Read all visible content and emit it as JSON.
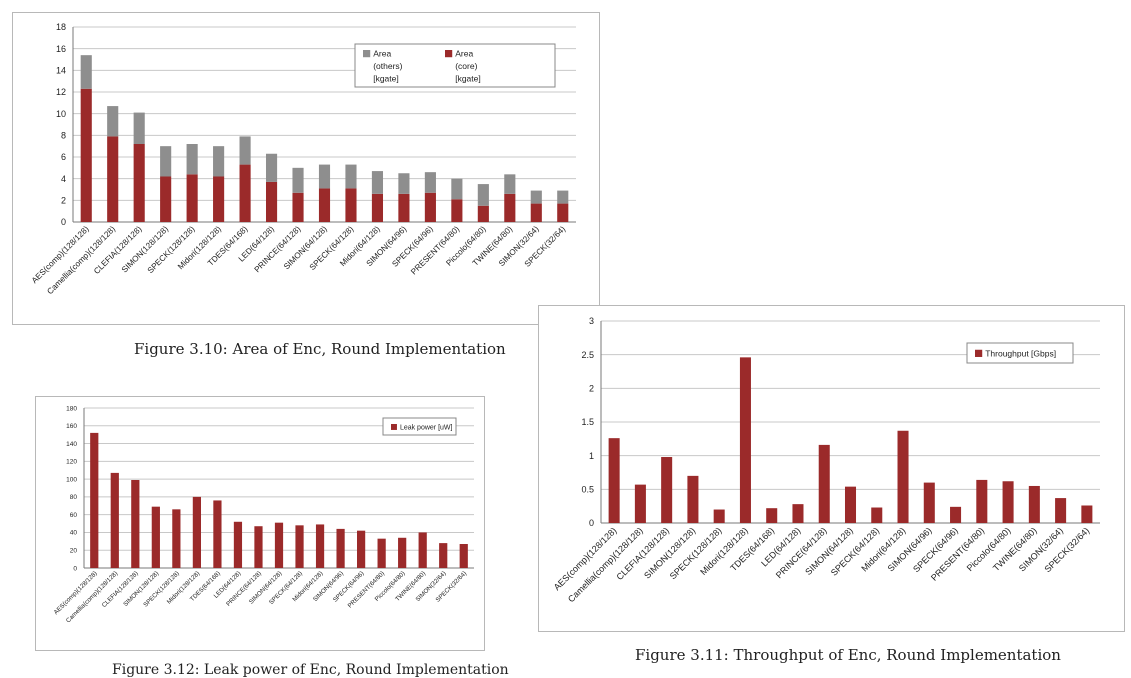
{
  "colors": {
    "core": "#9b2a2a",
    "others": "#8e8e8e",
    "grid": "#c8c8c8",
    "axis": "#7a7a7a"
  },
  "captions": {
    "area": "Figure 3.10: Area of Enc, Round Implementation",
    "throughput": "Figure 3.11: Throughput of Enc, Round Implementation",
    "leak": "Figure 3.12: Leak power of Enc, Round Implementation"
  },
  "chart_data": [
    {
      "id": "area",
      "type": "bar",
      "stacked": true,
      "categories": [
        "AES(comp)(128/128)",
        "Camellia(comp)(128/128)",
        "CLEFIA(128/128)",
        "SIMON(128/128)",
        "SPECK(128/128)",
        "Midori(128/128)",
        "TDES(64/168)",
        "LED(64/128)",
        "PRINCE(64/128)",
        "SIMON(64/128)",
        "SPECK(64/128)",
        "Midori(64/128)",
        "SIMON(64/96)",
        "SPECK(64/96)",
        "PRESENT(64/80)",
        "Piccolo(64/80)",
        "TWINE(64/80)",
        "SIMON(32/64)",
        "SPECK(32/64)"
      ],
      "series": [
        {
          "name": "Area (core) [kgate]",
          "color": "#9b2a2a",
          "values": [
            12.3,
            7.9,
            7.2,
            4.2,
            4.4,
            4.2,
            5.3,
            3.7,
            2.7,
            3.1,
            3.1,
            2.6,
            2.6,
            2.7,
            2.1,
            1.5,
            2.6,
            1.7,
            1.7
          ]
        },
        {
          "name": "Area (others) [kgate]",
          "color": "#8e8e8e",
          "values": [
            3.1,
            2.8,
            2.9,
            2.8,
            2.8,
            2.8,
            2.6,
            2.6,
            2.3,
            2.2,
            2.2,
            2.1,
            1.9,
            1.9,
            1.9,
            2.0,
            1.8,
            1.2,
            1.2
          ]
        }
      ],
      "legend": [
        {
          "lines": [
            "Area",
            "(others)",
            "[kgate]"
          ],
          "color": "#8e8e8e"
        },
        {
          "lines": [
            "Area",
            "(core)",
            "[kgate]"
          ],
          "color": "#9b2a2a"
        }
      ],
      "ylim": [
        0,
        18
      ],
      "yticks": [
        "0",
        "2",
        "4",
        "6",
        "8",
        "10",
        "12",
        "14",
        "16",
        "18"
      ],
      "grid": true,
      "legend_position": "top-right"
    },
    {
      "id": "throughput",
      "type": "bar",
      "categories": [
        "AES(comp)(128/128)",
        "Camellia(comp)(128/128)",
        "CLEFIA(128/128)",
        "SIMON(128/128)",
        "SPECK(128/128)",
        "Midori(128/128)",
        "TDES(64/168)",
        "LED(64/128)",
        "PRINCE(64/128)",
        "SIMON(64/128)",
        "SPECK(64/128)",
        "Midori(64/128)",
        "SIMON(64/96)",
        "SPECK(64/96)",
        "PRESENT(64/80)",
        "Piccolo(64/80)",
        "TWINE(64/80)",
        "SIMON(32/64)",
        "SPECK(32/64)"
      ],
      "series": [
        {
          "name": "Throughput [Gbps]",
          "color": "#9b2a2a",
          "values": [
            1.26,
            0.57,
            0.98,
            0.7,
            0.2,
            2.46,
            0.22,
            0.28,
            1.16,
            0.54,
            0.23,
            1.37,
            0.6,
            0.24,
            0.64,
            0.62,
            0.55,
            0.37,
            0.26
          ]
        }
      ],
      "legend": [
        {
          "lines": [
            "Throughput [Gbps]"
          ],
          "color": "#9b2a2a"
        }
      ],
      "ylim": [
        0,
        3
      ],
      "yticks": [
        "0",
        "0.5",
        "1",
        "1.5",
        "2",
        "2.5",
        "3"
      ],
      "grid": true,
      "legend_position": "top-right"
    },
    {
      "id": "leak",
      "type": "bar",
      "categories": [
        "AES(comp)(128/128)",
        "Camellia(comp)(128/128)",
        "CLEFIA(128/128)",
        "SIMON(128/128)",
        "SPECK(128/128)",
        "Midori(128/128)",
        "TDES(64/168)",
        "LED(64/128)",
        "PRINCE(64/128)",
        "SIMON(64/128)",
        "SPECK(64/128)",
        "Midori(64/128)",
        "SIMON(64/96)",
        "SPECK(64/96)",
        "PRESENT(64/80)",
        "Piccolo(64/80)",
        "TWINE(64/80)",
        "SIMON(32/64)",
        "SPECK(32/64)"
      ],
      "series": [
        {
          "name": "Leak power [uW]",
          "color": "#9b2a2a",
          "values": [
            152,
            107,
            99,
            69,
            66,
            80,
            76,
            52,
            47,
            51,
            48,
            49,
            44,
            42,
            33,
            34,
            40,
            28,
            27
          ]
        }
      ],
      "legend": [
        {
          "lines": [
            "Leak power [uW]"
          ],
          "color": "#9b2a2a"
        }
      ],
      "ylim": [
        0,
        180
      ],
      "yticks": [
        "0",
        "20",
        "40",
        "60",
        "80",
        "100",
        "120",
        "140",
        "160",
        "180"
      ],
      "grid": true,
      "legend_position": "top-right"
    }
  ]
}
